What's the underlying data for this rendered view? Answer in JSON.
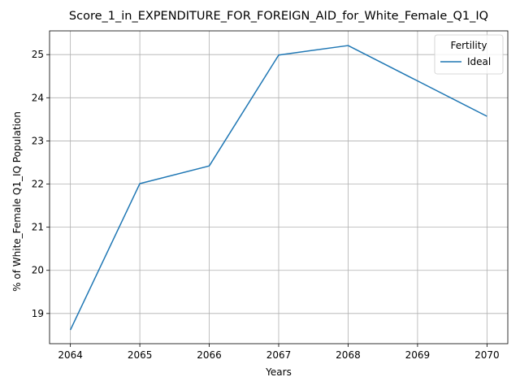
{
  "chart_data": {
    "type": "line",
    "title": "Score_1_in_EXPENDITURE_FOR_FOREIGN_AID_for_White_Female_Q1_IQ",
    "xlabel": "Years",
    "ylabel": "% of White_Female Q1_IQ Population",
    "x": [
      2064,
      2065,
      2066,
      2067,
      2068,
      2069,
      2070
    ],
    "xlim": [
      2063.7,
      2070.3
    ],
    "ylim": [
      18.3,
      25.55
    ],
    "xticks": [
      2064,
      2065,
      2066,
      2067,
      2068,
      2069,
      2070
    ],
    "yticks": [
      19,
      20,
      21,
      22,
      23,
      24,
      25
    ],
    "grid": true,
    "legend": {
      "title": "Fertility",
      "placement": "top-right"
    },
    "series": [
      {
        "name": "Ideal",
        "color": "#1f77b4",
        "x": [
          2064,
          2065,
          2066,
          2067,
          2068,
          2070
        ],
        "values": [
          18.62,
          22.01,
          22.42,
          24.99,
          25.21,
          23.57
        ]
      }
    ]
  }
}
